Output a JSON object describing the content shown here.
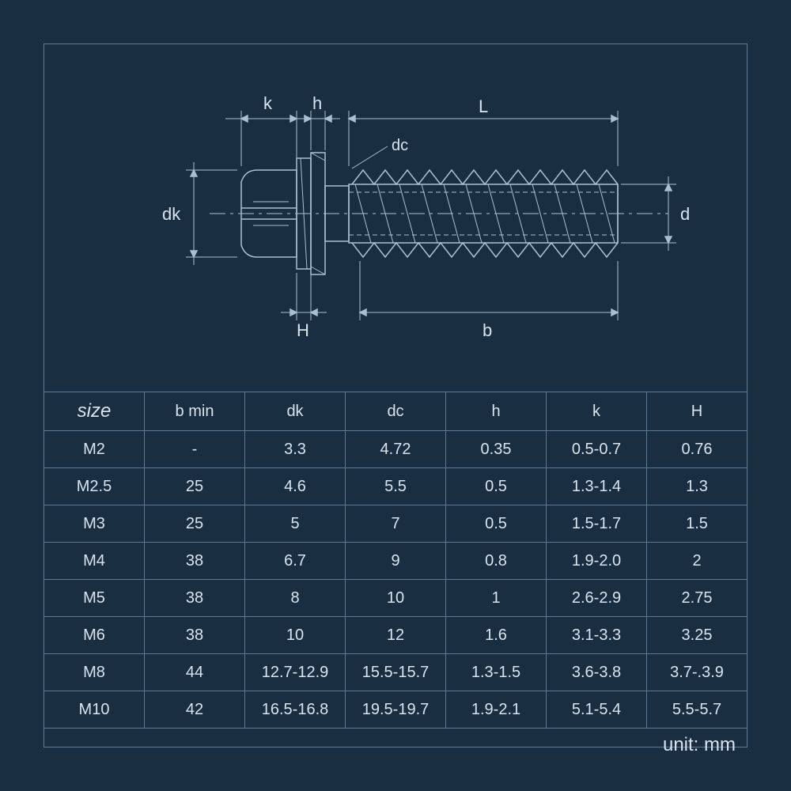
{
  "colors": {
    "background": "#1a2e42",
    "line": "#a8c0d4",
    "border": "#5a7a95",
    "text": "#d8e4ee"
  },
  "diagram": {
    "labels": {
      "k": "k",
      "h": "h",
      "L": "L",
      "dc": "dc",
      "dk": "dk",
      "d": "d",
      "H": "H",
      "b": "b"
    }
  },
  "table": {
    "columns": [
      "size",
      "b min",
      "dk",
      "dc",
      "h",
      "k",
      "H"
    ],
    "rows": [
      [
        "M2",
        "-",
        "3.3",
        "4.72",
        "0.35",
        "0.5-0.7",
        "0.76"
      ],
      [
        "M2.5",
        "25",
        "4.6",
        "5.5",
        "0.5",
        "1.3-1.4",
        "1.3"
      ],
      [
        "M3",
        "25",
        "5",
        "7",
        "0.5",
        "1.5-1.7",
        "1.5"
      ],
      [
        "M4",
        "38",
        "6.7",
        "9",
        "0.8",
        "1.9-2.0",
        "2"
      ],
      [
        "M5",
        "38",
        "8",
        "10",
        "1",
        "2.6-2.9",
        "2.75"
      ],
      [
        "M6",
        "38",
        "10",
        "12",
        "1.6",
        "3.1-3.3",
        "3.25"
      ],
      [
        "M8",
        "44",
        "12.7-12.9",
        "15.5-15.7",
        "1.3-1.5",
        "3.6-3.8",
        "3.7-.3.9"
      ],
      [
        "M10",
        "42",
        "16.5-16.8",
        "19.5-19.7",
        "1.9-2.1",
        "5.1-5.4",
        "5.5-5.7"
      ]
    ]
  },
  "unit": "unit: mm"
}
